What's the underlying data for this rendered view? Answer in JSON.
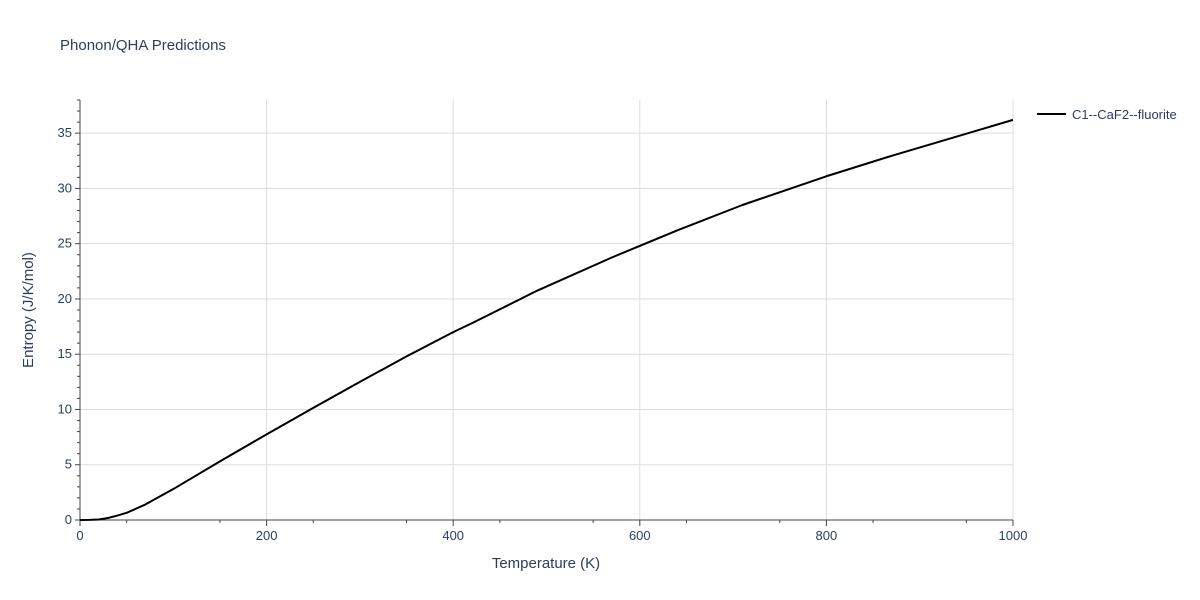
{
  "chart_data": {
    "type": "line",
    "title": "Phonon/QHA Predictions",
    "xlabel": "Temperature (K)",
    "ylabel": "Entropy (J/K/mol)",
    "xlim": [
      0,
      1000
    ],
    "ylim": [
      0,
      38
    ],
    "x_ticks": [
      "0",
      "200",
      "400",
      "600",
      "800",
      "1000"
    ],
    "y_ticks": [
      "0",
      "5",
      "10",
      "15",
      "20",
      "25",
      "30",
      "35"
    ],
    "grid": true,
    "legend_position": "top-right",
    "series": [
      {
        "name": "C1--CaF2--fluorite",
        "color": "#000000",
        "x": [
          0,
          10,
          20,
          30,
          40,
          50,
          70,
          100,
          150,
          200,
          250,
          300,
          350,
          400,
          420,
          490,
          570,
          640,
          710,
          800,
          870,
          960,
          1000
        ],
        "y": [
          0,
          0.01,
          0.05,
          0.18,
          0.4,
          0.65,
          1.4,
          2.8,
          5.3,
          7.75,
          10.15,
          12.5,
          14.8,
          17.0,
          17.8,
          20.75,
          23.75,
          26.2,
          28.5,
          31.1,
          32.95,
          35.2,
          36.2
        ]
      }
    ]
  }
}
